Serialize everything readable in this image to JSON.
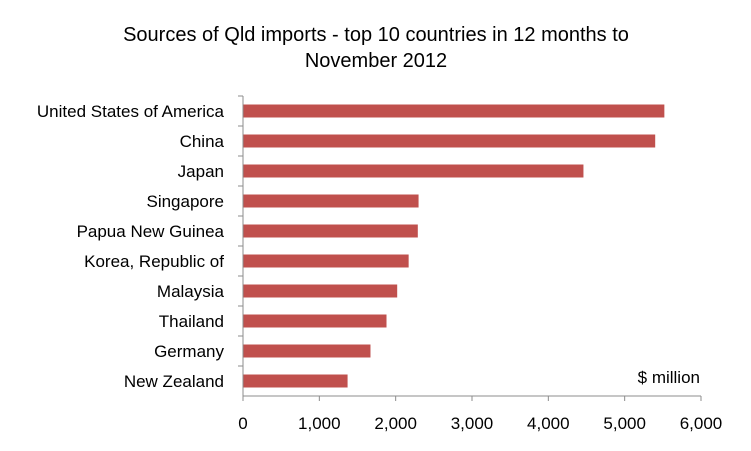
{
  "chart_data": {
    "type": "bar",
    "orientation": "horizontal",
    "title_lines": [
      "Sources of Qld imports - top 10 countries in 12 months to",
      "November 2012"
    ],
    "categories": [
      "United States of America",
      "China",
      "Japan",
      "Singapore",
      "Papua New Guinea",
      "Korea, Republic of",
      "Malaysia",
      "Thailand",
      "Germany",
      "New Zealand"
    ],
    "values": [
      5520,
      5400,
      4460,
      2300,
      2290,
      2170,
      2020,
      1880,
      1670,
      1370
    ],
    "xlim": [
      0,
      6000
    ],
    "x_ticks": [
      0,
      1000,
      2000,
      3000,
      4000,
      5000,
      6000
    ],
    "x_tick_labels": [
      "0",
      "1,000",
      "2,000",
      "3,000",
      "4,000",
      "5,000",
      "6,000"
    ],
    "unit_label": "$ million",
    "grid": false,
    "legend": "none",
    "bar_color": "#c0504d"
  }
}
